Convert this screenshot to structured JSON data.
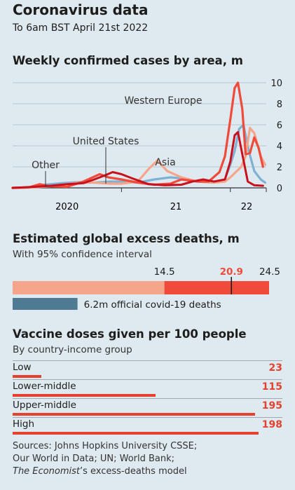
{
  "header": {
    "title": "Coronavirus data",
    "subtitle": "To 6am BST April 21st 2022"
  },
  "colors": {
    "western_europe": "#ef4a3a",
    "united_states": "#c8111d",
    "asia": "#f4a58a",
    "other": "#7fb1d3",
    "excess_light": "#f4a58a",
    "excess_mid": "#ef4a3a",
    "official": "#4f7a93"
  },
  "chart_data": [
    {
      "type": "line",
      "title": "Weekly confirmed cases by area, m",
      "x_ticks": [
        "2020",
        "21",
        "22"
      ],
      "y_ticks": [
        "0",
        "2",
        "4",
        "6",
        "8",
        "10"
      ],
      "ylim": [
        0,
        10
      ],
      "xlim": [
        2020.0,
        2022.33
      ],
      "grid": true,
      "annotations": [
        "Western Europe",
        "United States",
        "Asia",
        "Other"
      ],
      "series": [
        {
          "name": "Other",
          "color_key": "other",
          "points": [
            [
              2020.0,
              0
            ],
            [
              2020.15,
              0.05
            ],
            [
              2020.3,
              0.3
            ],
            [
              2020.45,
              0.45
            ],
            [
              2020.6,
              0.55
            ],
            [
              2020.75,
              0.5
            ],
            [
              2020.9,
              0.6
            ],
            [
              2021.0,
              0.6
            ],
            [
              2021.15,
              0.5
            ],
            [
              2021.3,
              0.8
            ],
            [
              2021.45,
              1.0
            ],
            [
              2021.55,
              0.9
            ],
            [
              2021.7,
              0.6
            ],
            [
              2021.85,
              0.5
            ],
            [
              2021.95,
              0.8
            ],
            [
              2022.0,
              2.2
            ],
            [
              2022.04,
              3.5
            ],
            [
              2022.08,
              5.6
            ],
            [
              2022.12,
              6.0
            ],
            [
              2022.17,
              3.5
            ],
            [
              2022.22,
              1.6
            ],
            [
              2022.28,
              0.8
            ],
            [
              2022.32,
              0.5
            ]
          ]
        },
        {
          "name": "Asia",
          "color_key": "asia",
          "points": [
            [
              2020.0,
              0
            ],
            [
              2020.2,
              0.05
            ],
            [
              2020.4,
              0.2
            ],
            [
              2020.6,
              0.5
            ],
            [
              2020.75,
              0.5
            ],
            [
              2020.9,
              0.4
            ],
            [
              2021.0,
              0.4
            ],
            [
              2021.15,
              0.6
            ],
            [
              2021.25,
              1.8
            ],
            [
              2021.33,
              2.6
            ],
            [
              2021.42,
              1.6
            ],
            [
              2021.55,
              1.0
            ],
            [
              2021.7,
              0.6
            ],
            [
              2021.85,
              0.5
            ],
            [
              2021.95,
              0.6
            ],
            [
              2022.0,
              1.0
            ],
            [
              2022.05,
              1.5
            ],
            [
              2022.1,
              2.0
            ],
            [
              2022.14,
              3.0
            ],
            [
              2022.18,
              5.7
            ],
            [
              2022.22,
              5.2
            ],
            [
              2022.28,
              3.0
            ],
            [
              2022.32,
              2.2
            ]
          ]
        },
        {
          "name": "Western Europe",
          "color_key": "western_europe",
          "points": [
            [
              2020.0,
              0
            ],
            [
              2020.15,
              0.05
            ],
            [
              2020.25,
              0.35
            ],
            [
              2020.35,
              0.15
            ],
            [
              2020.5,
              0.1
            ],
            [
              2020.65,
              0.6
            ],
            [
              2020.8,
              1.3
            ],
            [
              2020.88,
              1.0
            ],
            [
              2021.0,
              0.8
            ],
            [
              2021.15,
              0.5
            ],
            [
              2021.3,
              0.3
            ],
            [
              2021.45,
              0.4
            ],
            [
              2021.55,
              0.8
            ],
            [
              2021.7,
              0.6
            ],
            [
              2021.8,
              0.6
            ],
            [
              2021.9,
              1.5
            ],
            [
              2021.95,
              3.0
            ],
            [
              2022.0,
              6.5
            ],
            [
              2022.04,
              9.5
            ],
            [
              2022.07,
              10.0
            ],
            [
              2022.11,
              7.5
            ],
            [
              2022.14,
              3.2
            ],
            [
              2022.18,
              3.3
            ],
            [
              2022.22,
              4.8
            ],
            [
              2022.26,
              3.8
            ],
            [
              2022.3,
              2.0
            ]
          ]
        },
        {
          "name": "United States",
          "color_key": "united_states",
          "points": [
            [
              2020.0,
              0
            ],
            [
              2020.2,
              0.1
            ],
            [
              2020.35,
              0.2
            ],
            [
              2020.5,
              0.35
            ],
            [
              2020.65,
              0.45
            ],
            [
              2020.75,
              0.8
            ],
            [
              2020.85,
              1.2
            ],
            [
              2020.92,
              1.5
            ],
            [
              2021.0,
              1.3
            ],
            [
              2021.1,
              0.9
            ],
            [
              2021.25,
              0.35
            ],
            [
              2021.4,
              0.25
            ],
            [
              2021.55,
              0.3
            ],
            [
              2021.65,
              0.6
            ],
            [
              2021.75,
              0.8
            ],
            [
              2021.85,
              0.6
            ],
            [
              2021.95,
              0.8
            ],
            [
              2022.0,
              2.5
            ],
            [
              2022.04,
              5.0
            ],
            [
              2022.07,
              5.3
            ],
            [
              2022.11,
              3.2
            ],
            [
              2022.16,
              0.6
            ],
            [
              2022.22,
              0.25
            ],
            [
              2022.3,
              0.2
            ]
          ]
        }
      ]
    },
    {
      "type": "bar",
      "title": "Estimated global excess deaths, m",
      "subtitle": "With 95% confidence interval",
      "interval": {
        "low": 14.5,
        "central": 20.9,
        "high": 24.5,
        "low_label": "14.5",
        "central_label": "20.9",
        "high_label": "24.5"
      },
      "official": {
        "value": 6.2,
        "label": "6.2m official covid-19 deaths"
      },
      "scale_max": 24.5
    },
    {
      "type": "bar",
      "title": "Vaccine doses given per 100 people",
      "subtitle": "By country-income group",
      "categories": [
        "Low",
        "Lower-middle",
        "Upper-middle",
        "High"
      ],
      "values": [
        23,
        115,
        195,
        198
      ],
      "value_labels": [
        "23",
        "115",
        "195",
        "198"
      ],
      "xlim": [
        0,
        200
      ]
    }
  ],
  "sources": {
    "line1": "Sources: Johns Hopkins University CSSE;",
    "line2": "Our World in Data; UN; World Bank;",
    "line3_italic": "The Economist",
    "line3_rest": "’s excess-deaths model"
  }
}
